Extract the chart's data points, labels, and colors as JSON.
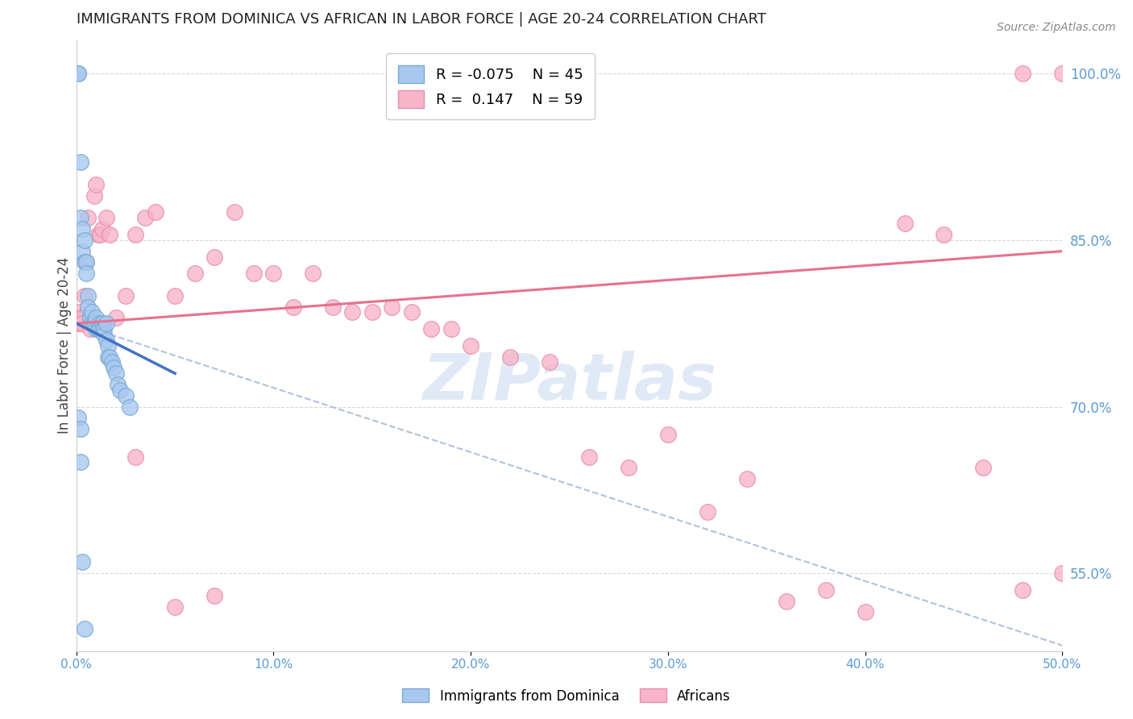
{
  "title": "IMMIGRANTS FROM DOMINICA VS AFRICAN IN LABOR FORCE | AGE 20-24 CORRELATION CHART",
  "source": "Source: ZipAtlas.com",
  "xlabel": "",
  "ylabel": "In Labor Force | Age 20-24",
  "xlim": [
    0.0,
    0.5
  ],
  "ylim": [
    0.48,
    1.03
  ],
  "xticks": [
    0.0,
    0.1,
    0.2,
    0.3,
    0.4,
    0.5
  ],
  "xticklabels": [
    "0.0%",
    "10.0%",
    "20.0%",
    "30.0%",
    "40.0%",
    "50.0%"
  ],
  "yticks_right": [
    0.55,
    0.7,
    0.85,
    1.0
  ],
  "yticklabels_right": [
    "55.0%",
    "70.0%",
    "85.0%",
    "100.0%"
  ],
  "legend_r1": "R = -0.075",
  "legend_n1": "N = 45",
  "legend_r2": "R =  0.147",
  "legend_n2": "N = 59",
  "color_blue": "#a8c8f0",
  "color_pink": "#f8b4c8",
  "color_blue_edge": "#7aaad0",
  "color_pink_edge": "#e890b0",
  "color_blue_line": "#4472c4",
  "color_pink_line": "#e87090",
  "color_dashed": "#a0b8d8",
  "watermark": "ZIPatlas",
  "watermark_color": "#ccddf0",
  "grid_color": "#d8d8d8",
  "blue_scatter_x": [
    0.001,
    0.001,
    0.002,
    0.002,
    0.003,
    0.003,
    0.004,
    0.004,
    0.005,
    0.005,
    0.006,
    0.006,
    0.007,
    0.007,
    0.008,
    0.008,
    0.009,
    0.009,
    0.01,
    0.01,
    0.011,
    0.011,
    0.012,
    0.012,
    0.013,
    0.013,
    0.014,
    0.014,
    0.015,
    0.015,
    0.016,
    0.016,
    0.017,
    0.018,
    0.019,
    0.02,
    0.021,
    0.022,
    0.025,
    0.027,
    0.001,
    0.002,
    0.002,
    0.003,
    0.004
  ],
  "blue_scatter_y": [
    1.0,
    1.0,
    0.92,
    0.87,
    0.86,
    0.84,
    0.85,
    0.83,
    0.83,
    0.82,
    0.8,
    0.79,
    0.78,
    0.78,
    0.785,
    0.775,
    0.775,
    0.775,
    0.78,
    0.77,
    0.77,
    0.77,
    0.775,
    0.77,
    0.775,
    0.77,
    0.77,
    0.765,
    0.775,
    0.76,
    0.755,
    0.745,
    0.745,
    0.74,
    0.735,
    0.73,
    0.72,
    0.715,
    0.71,
    0.7,
    0.69,
    0.68,
    0.65,
    0.56,
    0.5
  ],
  "pink_scatter_x": [
    0.001,
    0.001,
    0.002,
    0.002,
    0.003,
    0.003,
    0.004,
    0.005,
    0.006,
    0.007,
    0.008,
    0.009,
    0.01,
    0.011,
    0.012,
    0.013,
    0.015,
    0.017,
    0.02,
    0.025,
    0.03,
    0.035,
    0.04,
    0.05,
    0.06,
    0.07,
    0.08,
    0.09,
    0.1,
    0.11,
    0.12,
    0.13,
    0.14,
    0.15,
    0.16,
    0.17,
    0.18,
    0.19,
    0.2,
    0.22,
    0.24,
    0.26,
    0.28,
    0.3,
    0.32,
    0.34,
    0.36,
    0.38,
    0.4,
    0.42,
    0.44,
    0.46,
    0.48,
    0.48,
    0.5,
    0.5,
    0.03,
    0.05,
    0.07
  ],
  "pink_scatter_y": [
    0.775,
    0.785,
    0.775,
    0.78,
    0.78,
    0.775,
    0.8,
    0.83,
    0.87,
    0.77,
    0.775,
    0.89,
    0.9,
    0.855,
    0.855,
    0.86,
    0.87,
    0.855,
    0.78,
    0.8,
    0.855,
    0.87,
    0.875,
    0.8,
    0.82,
    0.835,
    0.875,
    0.82,
    0.82,
    0.79,
    0.82,
    0.79,
    0.785,
    0.785,
    0.79,
    0.785,
    0.77,
    0.77,
    0.755,
    0.745,
    0.74,
    0.655,
    0.645,
    0.675,
    0.605,
    0.635,
    0.525,
    0.535,
    0.515,
    0.865,
    0.855,
    0.645,
    0.535,
    1.0,
    0.55,
    1.0,
    0.655,
    0.52,
    0.53
  ],
  "blue_line_x0": 0.0,
  "blue_line_x1": 0.05,
  "blue_line_y0": 0.775,
  "blue_line_y1": 0.73,
  "dashed_line_x0": 0.0,
  "dashed_line_x1": 0.5,
  "dashed_line_y0": 0.775,
  "dashed_line_y1": 0.485,
  "pink_line_x0": 0.0,
  "pink_line_x1": 0.5,
  "pink_line_y0": 0.775,
  "pink_line_y1": 0.84
}
